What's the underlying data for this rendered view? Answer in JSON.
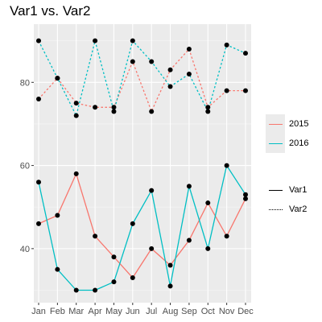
{
  "chart_data": {
    "type": "line",
    "title": "Var1 vs. Var2",
    "xlabel": "",
    "ylabel": "",
    "categories": [
      "Jan",
      "Feb",
      "Mar",
      "Apr",
      "May",
      "Jun",
      "Jul",
      "Aug",
      "Sep",
      "Oct",
      "Nov",
      "Dec"
    ],
    "yticks": [
      40,
      60,
      80
    ],
    "ylim": [
      27,
      94
    ],
    "grid": true,
    "legend_position": "right",
    "year_legend": [
      {
        "label": "2015",
        "color": "#f8766d"
      },
      {
        "label": "2016",
        "color": "#00bfc4"
      }
    ],
    "var_legend": [
      {
        "label": "Var1",
        "style": "solid"
      },
      {
        "label": "Var2",
        "style": "dotted"
      }
    ],
    "series": [
      {
        "year": "2015",
        "var": "Var1",
        "color": "#f8766d",
        "style": "solid",
        "values": [
          46,
          48,
          58,
          43,
          38,
          33,
          40,
          36,
          42,
          51,
          43,
          52
        ]
      },
      {
        "year": "2016",
        "var": "Var1",
        "color": "#00bfc4",
        "style": "solid",
        "values": [
          56,
          35,
          30,
          30,
          32,
          46,
          54,
          31,
          55,
          40,
          60,
          53
        ]
      },
      {
        "year": "2015",
        "var": "Var2",
        "color": "#f8766d",
        "style": "dotted",
        "values": [
          76,
          81,
          75,
          74,
          74,
          85,
          73,
          83,
          88,
          74,
          78,
          78
        ]
      },
      {
        "year": "2016",
        "var": "Var2",
        "color": "#00bfc4",
        "style": "dotted",
        "values": [
          90,
          81,
          72,
          90,
          73,
          90,
          85,
          79,
          82,
          73,
          89,
          87
        ]
      }
    ]
  }
}
